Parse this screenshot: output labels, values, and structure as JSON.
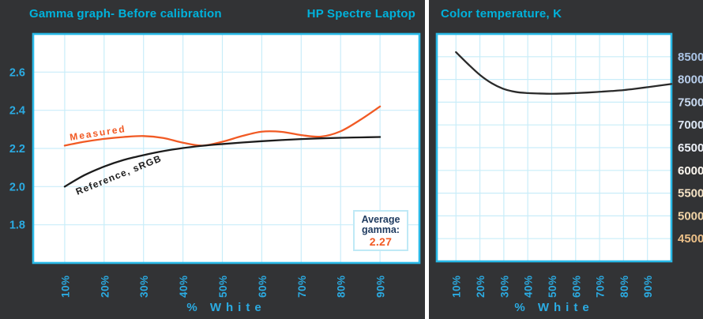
{
  "colors": {
    "panel_bg": "#323335",
    "title_cyan": "#00b2dc",
    "tick_cyan": "#2babe2",
    "grid_cyan": "#c9edf9",
    "border_cyan": "#29b9e7",
    "measured_orange": "#f15a24",
    "reference_black": "#1c1c1c",
    "temp_curve_black": "#2a2a2a",
    "navy": "#1e3a5f",
    "box_border": "#bfe9f6"
  },
  "left_panel": {
    "title": "Gamma graph- Before calibration",
    "device_label": "HP Spectre Laptop",
    "average_box": {
      "line1": "Average",
      "line2": "gamma:",
      "value": "2.27"
    }
  },
  "right_panel": {
    "title": "Color temperature, K"
  },
  "chart_data": [
    {
      "type": "line",
      "title": "Gamma graph- Before calibration",
      "annotation": "HP Spectre Laptop",
      "xlabel": "% White",
      "ylabel": "",
      "xlim": [
        2,
        100
      ],
      "ylim": [
        1.6,
        2.8
      ],
      "x_tick_values": [
        10,
        20,
        30,
        40,
        50,
        60,
        70,
        80,
        90
      ],
      "x_ticks": [
        "10%",
        "20%",
        "30%",
        "40%",
        "50%",
        "60%",
        "70%",
        "80%",
        "90%"
      ],
      "y_ticks": [
        1.8,
        2.0,
        2.2,
        2.4,
        2.6
      ],
      "y_tick_labels": [
        "1.8",
        "2.0",
        "2.2",
        "2.4",
        "2.6"
      ],
      "grid": true,
      "legend_position": "labels-on-curves",
      "average_gamma": "2.27",
      "series": [
        {
          "name": "Measured",
          "color": "#f15a24",
          "x": [
            10,
            15,
            20,
            25,
            30,
            35,
            40,
            45,
            50,
            55,
            60,
            65,
            70,
            75,
            80,
            85,
            90
          ],
          "values": [
            2.215,
            2.235,
            2.25,
            2.26,
            2.265,
            2.255,
            2.23,
            2.215,
            2.235,
            2.265,
            2.288,
            2.287,
            2.27,
            2.262,
            2.29,
            2.35,
            2.42
          ]
        },
        {
          "name": "Reference, sRGB",
          "color": "#1c1c1c",
          "x": [
            10,
            15,
            20,
            25,
            30,
            35,
            40,
            45,
            50,
            55,
            60,
            65,
            70,
            75,
            80,
            85,
            90
          ],
          "values": [
            2.0,
            2.06,
            2.105,
            2.14,
            2.165,
            2.186,
            2.202,
            2.214,
            2.223,
            2.231,
            2.238,
            2.244,
            2.249,
            2.253,
            2.256,
            2.258,
            2.26
          ]
        }
      ]
    },
    {
      "type": "line",
      "title": "Color temperature, K",
      "xlabel": "% White",
      "ylabel": "",
      "xlim": [
        2,
        100
      ],
      "ylim": [
        4000,
        9000
      ],
      "x_tick_values": [
        10,
        20,
        30,
        40,
        50,
        60,
        70,
        80,
        90
      ],
      "x_ticks": [
        "10%",
        "20%",
        "30%",
        "40%",
        "50%",
        "60%",
        "70%",
        "80%",
        "90%"
      ],
      "y_ticks": [
        4500,
        5000,
        5500,
        6000,
        6500,
        7000,
        7500,
        8000,
        8500
      ],
      "y_tick_labels": [
        "4500",
        "5000",
        "5500",
        "6000",
        "6500",
        "7000",
        "7500",
        "8000",
        "8500"
      ],
      "y_tick_colors": [
        "#ecc088",
        "#f0d3a6",
        "#f4e2c4",
        "#fbf6ee",
        "#edf1f8",
        "#dbe6f4",
        "#c8d9ef",
        "#b7cdea",
        "#a9c3e4"
      ],
      "grid": true,
      "legend_position": "none",
      "series": [
        {
          "name": "Color temperature",
          "color": "#2a2a2a",
          "x": [
            10,
            15,
            20,
            25,
            30,
            35,
            40,
            45,
            50,
            55,
            60,
            65,
            70,
            75,
            80,
            85,
            90,
            95,
            100
          ],
          "values": [
            8600,
            8340,
            8100,
            7915,
            7790,
            7725,
            7700,
            7690,
            7685,
            7690,
            7700,
            7712,
            7728,
            7745,
            7765,
            7795,
            7830,
            7865,
            7900
          ]
        }
      ]
    }
  ]
}
